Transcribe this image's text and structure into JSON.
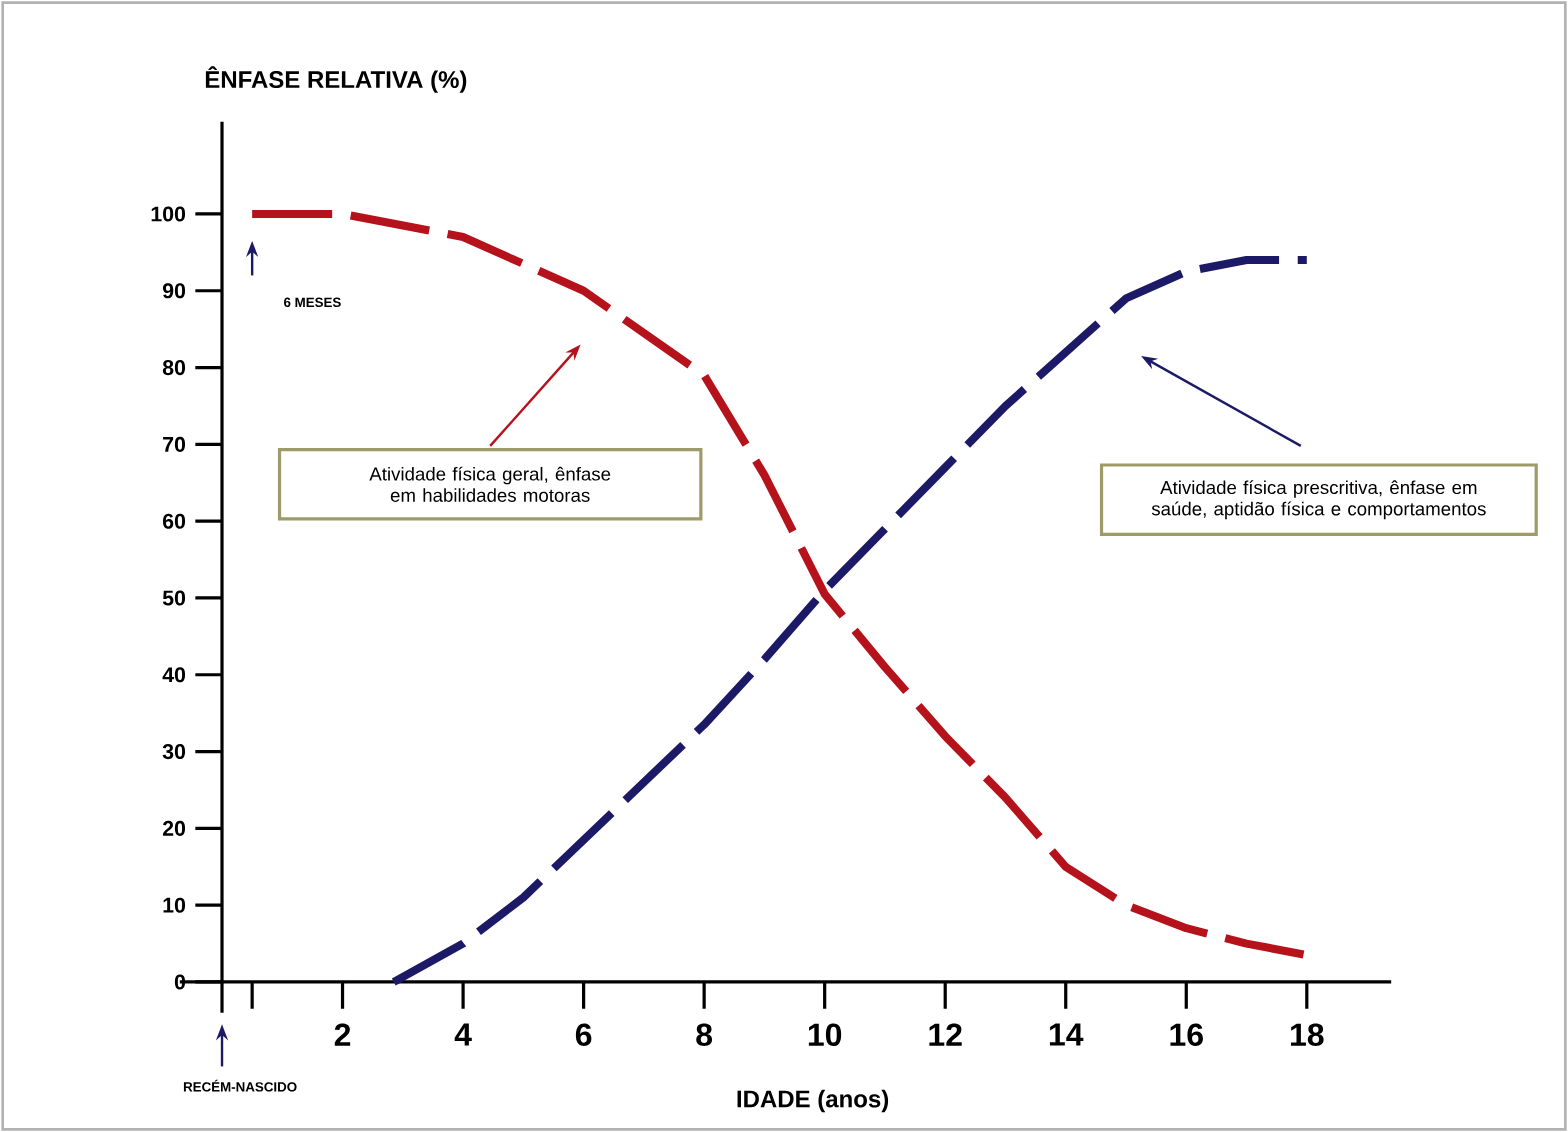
{
  "chart_data": {
    "type": "line",
    "ylabel": "ÊNFASE RELATIVA (%)",
    "xlabel": "IDADE (anos)",
    "xlim": [
      -0.7,
      19.4
    ],
    "ylim": [
      -4,
      112
    ],
    "xticks": [
      {
        "value": 0.5,
        "label": null
      },
      2,
      4,
      6,
      8,
      10,
      12,
      14,
      16,
      18
    ],
    "yticks": [
      0,
      10,
      20,
      30,
      40,
      50,
      60,
      70,
      80,
      90,
      100
    ],
    "line_style": "dashed",
    "marker": "none",
    "series": [
      {
        "color": "#b5121b",
        "x": [
          0.5,
          2,
          4,
          6,
          8,
          9,
          10,
          11,
          12,
          13,
          14,
          15,
          16,
          17,
          18
        ],
        "values": [
          100,
          100,
          97,
          90,
          79,
          66,
          50.5,
          41,
          32,
          24,
          15,
          10,
          7,
          5,
          3.5
        ]
      },
      {
        "color": "#1c1a66",
        "x": [
          2.85,
          4,
          5,
          6,
          7,
          8,
          9,
          10,
          11,
          12,
          13,
          14,
          15,
          16,
          17,
          18
        ],
        "values": [
          0,
          5,
          11,
          18.5,
          26,
          33.5,
          42,
          51,
          59,
          67,
          75,
          82,
          89,
          92.5,
          94,
          94
        ]
      }
    ],
    "annotations": [
      "6 MESES",
      "RECÉM-NASCIDO",
      "Atividade física geral, ênfase em habilidades motoras",
      "Atividade física prescritiva, ênfase em saúde, aptidão física e comportamentos"
    ]
  }
}
